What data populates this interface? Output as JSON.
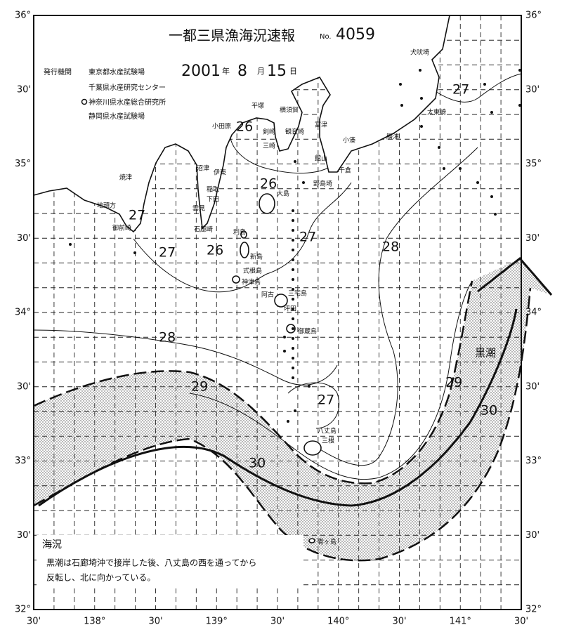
{
  "header": {
    "title": "一都三県漁海況速報",
    "number_prefix": "No.",
    "number": "4059",
    "date": {
      "year": "2001",
      "year_unit": "年",
      "month": "8",
      "month_unit": "月",
      "day": "15",
      "day_unit": "日"
    }
  },
  "issuers": {
    "label": "発行機関",
    "agencies": [
      "東京都水産試験場",
      "千葉県水産研究センター",
      "神奈川県水産総合研究所",
      "静岡県水産試験場"
    ]
  },
  "map": {
    "lat_labels": [
      "36°",
      "30'",
      "35°",
      "30'",
      "34°",
      "30'",
      "33°",
      "30'",
      "32°"
    ],
    "lon_labels": [
      "30'",
      "138°",
      "30'",
      "139°",
      "30'",
      "140°",
      "30'",
      "141°",
      "30'"
    ],
    "places": [
      "犬吠埼",
      "太東崎",
      "勝浦",
      "小湊",
      "千倉",
      "館山",
      "野島埼",
      "富津",
      "観音崎",
      "横須賀",
      "剣崎",
      "三崎",
      "平塚",
      "小田原",
      "沼津",
      "伊東",
      "稲取",
      "下田",
      "雲見",
      "石廊崎",
      "焼津",
      "地頭方",
      "御前崎",
      "大島",
      "利島",
      "新島",
      "式根島",
      "神津島",
      "三宅島",
      "阿古",
      "坪田",
      "御蔵島",
      "八丈島",
      "三根",
      "青ヶ島"
    ],
    "isotherm_labels": [
      "27",
      "26",
      "26",
      "27",
      "27",
      "26",
      "27",
      "28",
      "28",
      "29",
      "27",
      "29",
      "30",
      "30"
    ],
    "current_label": "黒潮"
  },
  "report": {
    "heading": "海況",
    "lines": [
      "黒潮は石廊埼沖で接岸した後、八丈島の西を通ってから",
      "反転し、北に向かっている。"
    ]
  }
}
